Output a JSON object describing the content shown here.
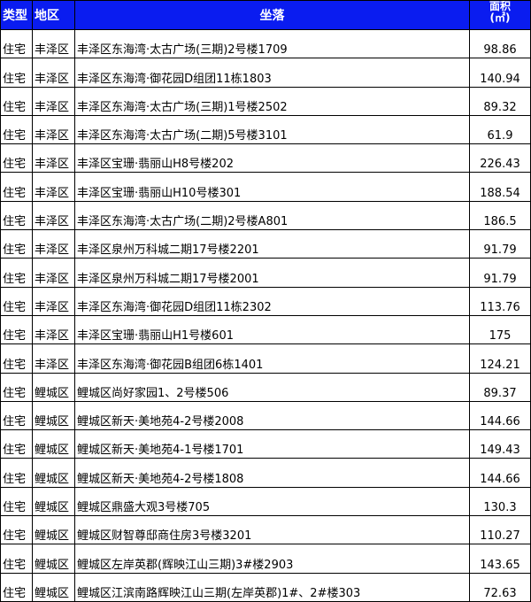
{
  "header": {
    "type": "类型",
    "region": "地区",
    "location": "坐落",
    "area_line1": "面积",
    "area_line2": "(㎡)"
  },
  "rows": [
    {
      "type": "住宅",
      "region": "丰泽区",
      "location": "丰泽区东海湾·太古广场(三期)2号楼1709",
      "area": "98.86"
    },
    {
      "type": "住宅",
      "region": "丰泽区",
      "location": "丰泽区东海湾·御花园D组团11栋1803",
      "area": "140.94"
    },
    {
      "type": "住宅",
      "region": "丰泽区",
      "location": "丰泽区东海湾·太古广场(三期)1号楼2502",
      "area": "89.32"
    },
    {
      "type": "住宅",
      "region": "丰泽区",
      "location": "丰泽区东海湾·太古广场(二期)5号楼3101",
      "area": "61.9"
    },
    {
      "type": "住宅",
      "region": "丰泽区",
      "location": "丰泽区宝珊·翡丽山H8号楼202",
      "area": "226.43"
    },
    {
      "type": "住宅",
      "region": "丰泽区",
      "location": "丰泽区宝珊·翡丽山H10号楼301",
      "area": "188.54"
    },
    {
      "type": "住宅",
      "region": "丰泽区",
      "location": "丰泽区东海湾·太古广场(二期)2号楼A801",
      "area": "186.5"
    },
    {
      "type": "住宅",
      "region": "丰泽区",
      "location": "丰泽区泉州万科城二期17号楼2201",
      "area": "91.79"
    },
    {
      "type": "住宅",
      "region": "丰泽区",
      "location": "丰泽区泉州万科城二期17号楼2001",
      "area": "91.79"
    },
    {
      "type": "住宅",
      "region": "丰泽区",
      "location": "丰泽区东海湾·御花园D组团11栋2302",
      "area": "113.76"
    },
    {
      "type": "住宅",
      "region": "丰泽区",
      "location": "丰泽区宝珊·翡丽山H1号楼601",
      "area": "175"
    },
    {
      "type": "住宅",
      "region": "丰泽区",
      "location": "丰泽区东海湾·御花园B组团6栋1401",
      "area": "124.21"
    },
    {
      "type": "住宅",
      "region": "鲤城区",
      "location": "鲤城区尚好家园1、2号楼506",
      "area": "89.37"
    },
    {
      "type": "住宅",
      "region": "鲤城区",
      "location": "鲤城区新天·美地苑4-2号楼2008",
      "area": "144.66"
    },
    {
      "type": "住宅",
      "region": "鲤城区",
      "location": "鲤城区新天·美地苑4-1号楼1701",
      "area": "149.43"
    },
    {
      "type": "住宅",
      "region": "鲤城区",
      "location": "鲤城区新天·美地苑4-2号楼1808",
      "area": "144.66"
    },
    {
      "type": "住宅",
      "region": "鲤城区",
      "location": "鲤城区鼎盛大观3号楼705",
      "area": "130.3"
    },
    {
      "type": "住宅",
      "region": "鲤城区",
      "location": "鲤城区财智尊邸商住房3号楼3201",
      "area": "110.27"
    },
    {
      "type": "住宅",
      "region": "鲤城区",
      "location": "鲤城区左岸英郡(辉映江山三期)3#楼2903",
      "area": "143.65"
    },
    {
      "type": "住宅",
      "region": "鲤城区",
      "location": "鲤城区江滨南路辉映江山三期(左岸英郡)1#、2#楼303",
      "area": "72.63"
    }
  ],
  "colors": {
    "header_bg": "#0a1cf0",
    "header_text": "#ffffff"
  }
}
